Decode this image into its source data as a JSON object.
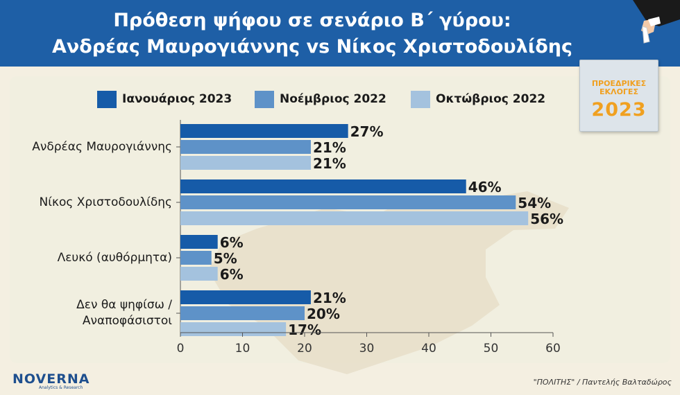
{
  "header": {
    "title_line1": "Πρόθεση ψήφου σε σενάριο Β΄ γύρου:",
    "title_line2": "Ανδρέας Μαυρογιάννης vs Νίκος Χριστοδουλίδης"
  },
  "logo": {
    "line1": "ΠΡΟΕΔΡΙΚΕΣ",
    "line2": "ΕΚΛΟΓΕΣ",
    "year": "2023"
  },
  "footer": {
    "brand": "NOVERNA",
    "brand_sub": "Analytics & Research",
    "source": "\"ΠΟΛΙΤΗΣ\" / Παντελής Βαλταδώρος"
  },
  "colors": {
    "banner": "#1e5fa6",
    "series": [
      "#165ba8",
      "#5e92c8",
      "#a4c2de"
    ]
  },
  "chart_data": {
    "type": "bar",
    "orientation": "horizontal",
    "categories": [
      "Ανδρέας Μαυρογιάννης",
      "Νίκος Χριστοδουλίδης",
      "Λευκό (αυθόρμητα)",
      "Δεν θα ψηφίσω / Αναποφάσιστοι"
    ],
    "category_lines": [
      [
        "Ανδρέας Μαυρογιάννης"
      ],
      [
        "Νίκος Χριστοδουλίδης"
      ],
      [
        "Λευκό (αυθόρμητα)"
      ],
      [
        "Δεν θα ψηφίσω /",
        "Αναποφάσιστοι"
      ]
    ],
    "series": [
      {
        "name": "Ιανουάριος 2023",
        "values": [
          27,
          46,
          6,
          21
        ],
        "color": "#165ba8"
      },
      {
        "name": "Νοέμβριος 2022",
        "values": [
          21,
          54,
          5,
          20
        ],
        "color": "#5e92c8"
      },
      {
        "name": "Οκτώβριος 2022",
        "values": [
          21,
          56,
          6,
          17
        ],
        "color": "#a4c2de"
      }
    ],
    "value_suffix": "%",
    "xlim": [
      0,
      60
    ],
    "xticks": [
      "0",
      "10",
      "20",
      "30",
      "40",
      "50",
      "60"
    ],
    "grid": false,
    "legend_position": "top"
  }
}
